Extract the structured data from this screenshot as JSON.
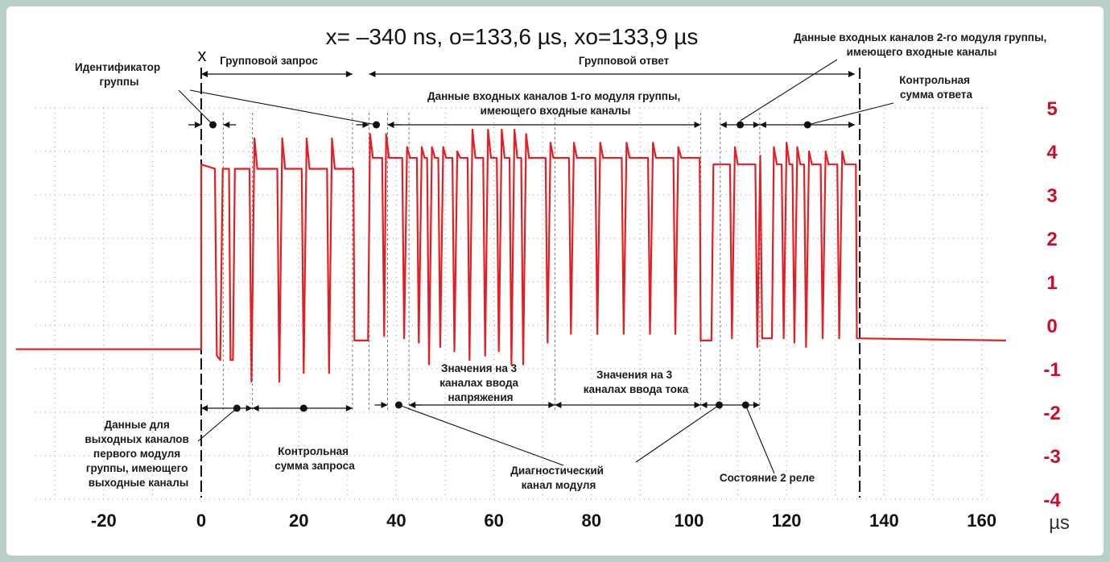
{
  "header": {
    "readout": "x= –340 ns, o=133,6 µs, xo=133,9 µs",
    "cursor_x": "x"
  },
  "annotations": {
    "group_id": [
      "Идентификатор",
      "группы"
    ],
    "group_request": "Групповой запрос",
    "group_response": "Групповой ответ",
    "module2_inputs": [
      "Данные входных каналов 2-го модуля группы,",
      "имеющего входные каналы"
    ],
    "module1_inputs": [
      "Данные входных каналов 1-го модуля группы,",
      "имеющего входные каналы"
    ],
    "response_checksum": [
      "Контрольная",
      "сумма ответа"
    ],
    "voltage_values": [
      "Значения на 3",
      "каналах ввода",
      "напряжения"
    ],
    "current_values": [
      "Значения на 3",
      "каналах ввода тока"
    ],
    "output_data": [
      "Данные для",
      "выходных каналов",
      "первого модуля",
      "группы, имеющего",
      "выходные каналы"
    ],
    "request_checksum": [
      "Контрольная",
      "сумма запроса"
    ],
    "diagnostic": [
      "Диагностический",
      "канал модуля"
    ],
    "relay_state": "Состояние 2 реле"
  },
  "chart_data": {
    "type": "line",
    "xlabel": "µs",
    "ylabel": "",
    "x_ticks": [
      "-20",
      "0",
      "20",
      "40",
      "60",
      "80",
      "100",
      "120",
      "140",
      "160"
    ],
    "y_ticks": [
      "5",
      "4",
      "3",
      "2",
      "1",
      "0",
      "-1",
      "-2",
      "-3",
      "-4"
    ],
    "xlim": [
      -38,
      167
    ],
    "ylim": [
      -4,
      5
    ],
    "grid": true,
    "line_color": "#e31e24",
    "tick_color": "#c8102e",
    "series": [
      {
        "values": [
          [
            -38,
            -0.55
          ],
          [
            0,
            -0.55
          ],
          [
            0,
            3.7
          ],
          [
            2.8,
            3.6
          ],
          [
            3.2,
            -0.7
          ],
          [
            3.9,
            -0.8
          ],
          [
            4.4,
            3.6
          ],
          [
            5.7,
            3.6
          ],
          [
            6,
            -0.8
          ],
          [
            6.5,
            -0.8
          ],
          [
            6.9,
            3.6
          ],
          [
            9.9,
            3.6
          ],
          [
            10.3,
            -1.3
          ],
          [
            10.9,
            4.3
          ],
          [
            11.5,
            3.6
          ],
          [
            15.6,
            3.6
          ],
          [
            16,
            -1.3
          ],
          [
            16.6,
            4.3
          ],
          [
            17.2,
            3.6
          ],
          [
            20.6,
            3.6
          ],
          [
            21,
            -1.1
          ],
          [
            21.6,
            4.3
          ],
          [
            22.2,
            3.6
          ],
          [
            25.8,
            3.6
          ],
          [
            26.2,
            -1.1
          ],
          [
            26.8,
            4.3
          ],
          [
            27.4,
            3.6
          ],
          [
            31.2,
            3.6
          ],
          [
            31.4,
            -0.35
          ],
          [
            34.2,
            -0.35
          ],
          [
            34.6,
            4.4
          ],
          [
            35.2,
            3.85
          ],
          [
            37.1,
            3.85
          ],
          [
            37.5,
            -0.25
          ],
          [
            37.9,
            4.4
          ],
          [
            38.5,
            3.85
          ],
          [
            41.2,
            3.85
          ],
          [
            41.6,
            -0.3
          ],
          [
            42.2,
            4.1
          ],
          [
            42.8,
            3.85
          ],
          [
            44.2,
            3.85
          ],
          [
            44.6,
            -0.4
          ],
          [
            45.2,
            4.1
          ],
          [
            45.8,
            3.85
          ],
          [
            46.3,
            3.85
          ],
          [
            46.7,
            -0.9
          ],
          [
            47.3,
            4.1
          ],
          [
            47.9,
            3.85
          ],
          [
            48.6,
            3.85
          ],
          [
            49,
            -0.5
          ],
          [
            49.6,
            4.1
          ],
          [
            50.2,
            3.85
          ],
          [
            51.5,
            3.85
          ],
          [
            51.9,
            -0.6
          ],
          [
            52.5,
            4.0
          ],
          [
            53.1,
            3.85
          ],
          [
            54.6,
            3.85
          ],
          [
            55,
            -0.8
          ],
          [
            55.6,
            4.5
          ],
          [
            56.2,
            3.85
          ],
          [
            57.8,
            3.85
          ],
          [
            58.2,
            -0.7
          ],
          [
            58.8,
            4.5
          ],
          [
            59.4,
            3.85
          ],
          [
            60.6,
            3.85
          ],
          [
            61,
            -0.6
          ],
          [
            61.6,
            4.5
          ],
          [
            62.2,
            3.85
          ],
          [
            63.2,
            3.85
          ],
          [
            63.6,
            -0.9
          ],
          [
            64.2,
            4.5
          ],
          [
            64.8,
            3.85
          ],
          [
            65.6,
            3.85
          ],
          [
            66,
            -0.9
          ],
          [
            66.6,
            4.4
          ],
          [
            67.2,
            3.85
          ],
          [
            70.6,
            3.85
          ],
          [
            71,
            -0.4
          ],
          [
            71.6,
            4.2
          ],
          [
            72.2,
            3.85
          ],
          [
            75.4,
            3.85
          ],
          [
            75.8,
            -0.2
          ],
          [
            76.4,
            4.2
          ],
          [
            77,
            3.85
          ],
          [
            80.8,
            3.85
          ],
          [
            81.2,
            -0.2
          ],
          [
            81.8,
            4.2
          ],
          [
            82.4,
            3.85
          ],
          [
            86.2,
            3.85
          ],
          [
            86.6,
            -0.2
          ],
          [
            87.2,
            4.2
          ],
          [
            87.8,
            3.85
          ],
          [
            91.6,
            3.85
          ],
          [
            92,
            -0.2
          ],
          [
            92.6,
            4.2
          ],
          [
            93.2,
            3.85
          ],
          [
            96.8,
            3.85
          ],
          [
            97.2,
            -0.2
          ],
          [
            97.8,
            4.1
          ],
          [
            98.4,
            3.85
          ],
          [
            102.2,
            3.85
          ],
          [
            102.4,
            -0.35
          ],
          [
            104.6,
            -0.35
          ],
          [
            105,
            3.7
          ],
          [
            108.4,
            3.7
          ],
          [
            108.8,
            -0.3
          ],
          [
            109.4,
            4.1
          ],
          [
            110,
            3.7
          ],
          [
            113.6,
            3.7
          ],
          [
            114,
            -0.5
          ],
          [
            114.6,
            3.9
          ],
          [
            115,
            -0.3
          ],
          [
            117,
            -0.3
          ],
          [
            117.4,
            4.1
          ],
          [
            118,
            3.7
          ],
          [
            119,
            3.7
          ],
          [
            119.4,
            -0.3
          ],
          [
            120,
            4.2
          ],
          [
            120.6,
            3.7
          ],
          [
            121.2,
            3.7
          ],
          [
            121.6,
            -0.4
          ],
          [
            122.2,
            4.1
          ],
          [
            122.8,
            3.7
          ],
          [
            123.6,
            3.7
          ],
          [
            124,
            -0.5
          ],
          [
            124.6,
            4.0
          ],
          [
            125.2,
            3.7
          ],
          [
            127,
            3.7
          ],
          [
            127.4,
            -0.3
          ],
          [
            128,
            4.0
          ],
          [
            128.6,
            3.7
          ],
          [
            130.4,
            3.7
          ],
          [
            130.8,
            -0.3
          ],
          [
            131.4,
            4.0
          ],
          [
            132,
            3.7
          ],
          [
            134.2,
            3.7
          ],
          [
            134.4,
            -0.3
          ],
          [
            165,
            -0.35
          ]
        ]
      }
    ]
  }
}
